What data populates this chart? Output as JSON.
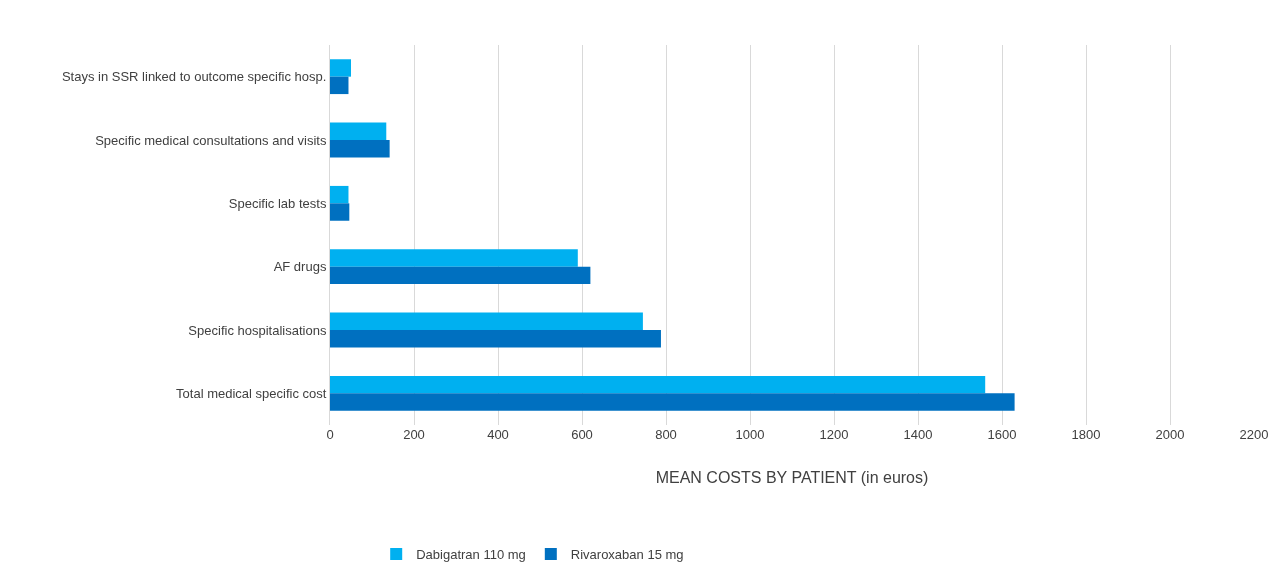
{
  "chart_data": {
    "type": "bar",
    "orientation": "horizontal",
    "xlabel": "MEAN COSTS BY PATIENT (in euros)",
    "categories": [
      "Stays in SSR linked to outcome specific hosp.",
      "Specific medical consultations and visits",
      "Specific lab tests",
      "AF drugs",
      "Specific hospitalisations",
      "Total medical specific cost"
    ],
    "series": [
      {
        "name": "Dabigatran 110 mg",
        "color": "#00b0f0",
        "values": [
          50,
          134,
          44,
          590,
          745,
          1560
        ]
      },
      {
        "name": "Rivaroxaban 15 mg",
        "color": "#0070c0",
        "values": [
          44,
          142,
          46,
          620,
          788,
          1630
        ]
      }
    ],
    "xlim": [
      0,
      2200
    ],
    "xticks": [
      0,
      200,
      400,
      600,
      800,
      1000,
      1200,
      1400,
      1600,
      1800,
      2000,
      2200
    ],
    "grid": "x",
    "legend": "bottom"
  }
}
